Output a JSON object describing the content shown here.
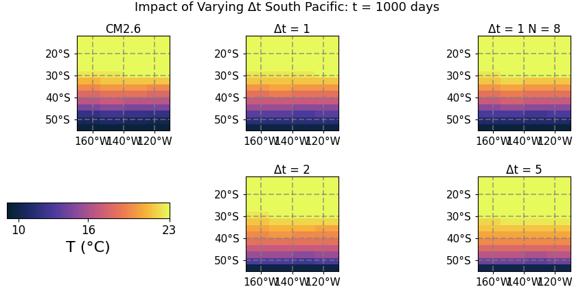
{
  "title": "Impact of Varying Δt South Pacific: t = 1000 days",
  "colorbar": {
    "range": [
      9,
      23
    ],
    "ticks": [
      10,
      16,
      23
    ],
    "label": "T̄ (°C)"
  },
  "chart_data": [
    {
      "type": "heatmap",
      "title": "CM2.6",
      "x": [
        -170,
        -155,
        -140,
        -125,
        -110
      ],
      "y": [
        -55,
        -52,
        -49,
        -46,
        -43,
        -40,
        -37,
        -34,
        -31,
        -28,
        -25,
        -20,
        -12
      ],
      "cells": [
        [
          9.5,
          9.5,
          9.5,
          9.5
        ],
        [
          10.5,
          10.8,
          10.5,
          10.2
        ],
        [
          12,
          12.5,
          12.2,
          12
        ],
        [
          14.5,
          15,
          14.5,
          14.5
        ],
        [
          16.5,
          17,
          16.5,
          16.5
        ],
        [
          18,
          18.5,
          18.5,
          18
        ],
        [
          19.5,
          20,
          20,
          19.5
        ],
        [
          21,
          21.5,
          21.5,
          21.5
        ],
        [
          22.5,
          22.5,
          23,
          23
        ],
        [
          23,
          23,
          23,
          23
        ],
        [
          23,
          23,
          23,
          23
        ],
        [
          23,
          23,
          23,
          23
        ]
      ],
      "xlim": [
        -170,
        -110
      ],
      "ylim": [
        -55,
        -12
      ],
      "xticks": [
        {
          "value": -160,
          "label": "160°W"
        },
        {
          "value": -140,
          "label": "140°W"
        },
        {
          "value": -120,
          "label": "120°W"
        }
      ],
      "yticks": [
        {
          "value": -50,
          "label": "50°S"
        },
        {
          "value": -40,
          "label": "40°S"
        },
        {
          "value": -30,
          "label": "30°S"
        },
        {
          "value": -20,
          "label": "20°S"
        }
      ],
      "grid": true
    },
    {
      "type": "heatmap",
      "title": "Δt = 1",
      "x": [
        -170,
        -155,
        -140,
        -125,
        -110
      ],
      "y": [
        -55,
        -52,
        -49,
        -46,
        -43,
        -40,
        -37,
        -34,
        -31,
        -28,
        -25,
        -20,
        -12
      ],
      "cells": [
        [
          9.8,
          9.8,
          9.8,
          9.8
        ],
        [
          11.5,
          11.5,
          11.5,
          11.5
        ],
        [
          13.5,
          13.5,
          13,
          13.5
        ],
        [
          15.5,
          15.5,
          15,
          15
        ],
        [
          17,
          17,
          17,
          17
        ],
        [
          18.5,
          19,
          18.5,
          18.5
        ],
        [
          20,
          20.5,
          20,
          20
        ],
        [
          21.5,
          21.5,
          21.5,
          21.5
        ],
        [
          22.5,
          22.5,
          22.5,
          23
        ],
        [
          23,
          23,
          23,
          23
        ],
        [
          23,
          23,
          23,
          23
        ],
        [
          23,
          23,
          23,
          23
        ]
      ],
      "xlim": [
        -170,
        -110
      ],
      "ylim": [
        -55,
        -12
      ],
      "xticks": [
        {
          "value": -160,
          "label": "160°W"
        },
        {
          "value": -140,
          "label": "140°W"
        },
        {
          "value": -120,
          "label": "120°W"
        }
      ],
      "yticks": [
        {
          "value": -50,
          "label": "50°S"
        },
        {
          "value": -40,
          "label": "40°S"
        },
        {
          "value": -30,
          "label": "30°S"
        },
        {
          "value": -20,
          "label": "20°S"
        }
      ],
      "grid": true
    },
    {
      "type": "heatmap",
      "title": "Δt = 1 N = 8",
      "x": [
        -170,
        -155,
        -140,
        -125,
        -110
      ],
      "y": [
        -55,
        -52,
        -49,
        -46,
        -43,
        -40,
        -37,
        -34,
        -31,
        -28,
        -25,
        -20,
        -12
      ],
      "cells": [
        [
          9.5,
          9.5,
          9.5,
          9.5
        ],
        [
          11,
          11,
          11,
          11
        ],
        [
          13,
          13,
          12.5,
          13
        ],
        [
          15,
          15.5,
          15,
          15
        ],
        [
          17,
          17.5,
          17,
          17
        ],
        [
          18.5,
          19,
          18.5,
          18.5
        ],
        [
          20,
          20.5,
          20,
          20
        ],
        [
          21.5,
          22,
          21.5,
          21.5
        ],
        [
          22.5,
          23,
          23,
          23
        ],
        [
          23,
          23,
          23,
          23
        ],
        [
          23,
          23,
          23,
          23
        ],
        [
          23,
          23,
          23,
          23
        ]
      ],
      "xlim": [
        -170,
        -110
      ],
      "ylim": [
        -55,
        -12
      ],
      "xticks": [
        {
          "value": -160,
          "label": "160°W"
        },
        {
          "value": -140,
          "label": "140°W"
        },
        {
          "value": -120,
          "label": "120°W"
        }
      ],
      "yticks": [
        {
          "value": -50,
          "label": "50°S"
        },
        {
          "value": -40,
          "label": "40°S"
        },
        {
          "value": -30,
          "label": "30°S"
        },
        {
          "value": -20,
          "label": "20°S"
        }
      ],
      "grid": true
    },
    {
      "type": "heatmap",
      "title": "Δt = 2",
      "x": [
        -170,
        -155,
        -140,
        -125,
        -110
      ],
      "y": [
        -55,
        -52,
        -49,
        -46,
        -43,
        -40,
        -37,
        -34,
        -31,
        -28,
        -25,
        -20,
        -12
      ],
      "cells": [
        [
          9.8,
          9.8,
          9.8,
          9.8
        ],
        [
          13,
          13,
          12.5,
          13
        ],
        [
          15.5,
          15.5,
          15,
          15.5
        ],
        [
          17,
          17,
          17,
          17
        ],
        [
          18.5,
          18.5,
          18.5,
          18.5
        ],
        [
          19.5,
          20,
          19.5,
          19.5
        ],
        [
          20.5,
          21,
          21,
          20.5
        ],
        [
          21.5,
          22,
          22,
          22
        ],
        [
          22.5,
          23,
          23,
          23
        ],
        [
          23,
          23,
          23,
          23
        ],
        [
          23,
          23,
          23,
          23
        ],
        [
          23,
          23,
          23,
          23
        ]
      ],
      "xlim": [
        -170,
        -110
      ],
      "ylim": [
        -55,
        -12
      ],
      "xticks": [
        {
          "value": -160,
          "label": "160°W"
        },
        {
          "value": -140,
          "label": "140°W"
        },
        {
          "value": -120,
          "label": "120°W"
        }
      ],
      "yticks": [
        {
          "value": -50,
          "label": "50°S"
        },
        {
          "value": -40,
          "label": "40°S"
        },
        {
          "value": -30,
          "label": "30°S"
        },
        {
          "value": -20,
          "label": "20°S"
        }
      ],
      "grid": true
    },
    {
      "type": "heatmap",
      "title": "Δt = 5",
      "x": [
        -170,
        -155,
        -140,
        -125,
        -110
      ],
      "y": [
        -55,
        -52,
        -49,
        -46,
        -43,
        -40,
        -37,
        -34,
        -31,
        -28,
        -25,
        -20,
        -12
      ],
      "cells": [
        [
          10,
          10,
          10,
          10
        ],
        [
          14,
          14,
          13.5,
          14
        ],
        [
          16.5,
          16.5,
          16,
          16.5
        ],
        [
          18,
          18,
          18,
          18
        ],
        [
          19.5,
          19.5,
          19.5,
          19.5
        ],
        [
          20.5,
          20.5,
          20.5,
          20.5
        ],
        [
          21.5,
          21.5,
          21.5,
          21.5
        ],
        [
          22,
          22.5,
          22.5,
          22.5
        ],
        [
          23,
          23,
          23,
          23
        ],
        [
          23,
          23,
          23,
          23
        ],
        [
          23,
          23,
          23,
          23
        ],
        [
          23,
          23,
          23,
          23
        ]
      ],
      "xlim": [
        -170,
        -110
      ],
      "ylim": [
        -55,
        -12
      ],
      "xticks": [
        {
          "value": -160,
          "label": "160°W"
        },
        {
          "value": -140,
          "label": "140°W"
        },
        {
          "value": -120,
          "label": "120°W"
        }
      ],
      "yticks": [
        {
          "value": -50,
          "label": "50°S"
        },
        {
          "value": -40,
          "label": "40°S"
        },
        {
          "value": -30,
          "label": "30°S"
        },
        {
          "value": -20,
          "label": "20°S"
        }
      ],
      "grid": true
    }
  ]
}
